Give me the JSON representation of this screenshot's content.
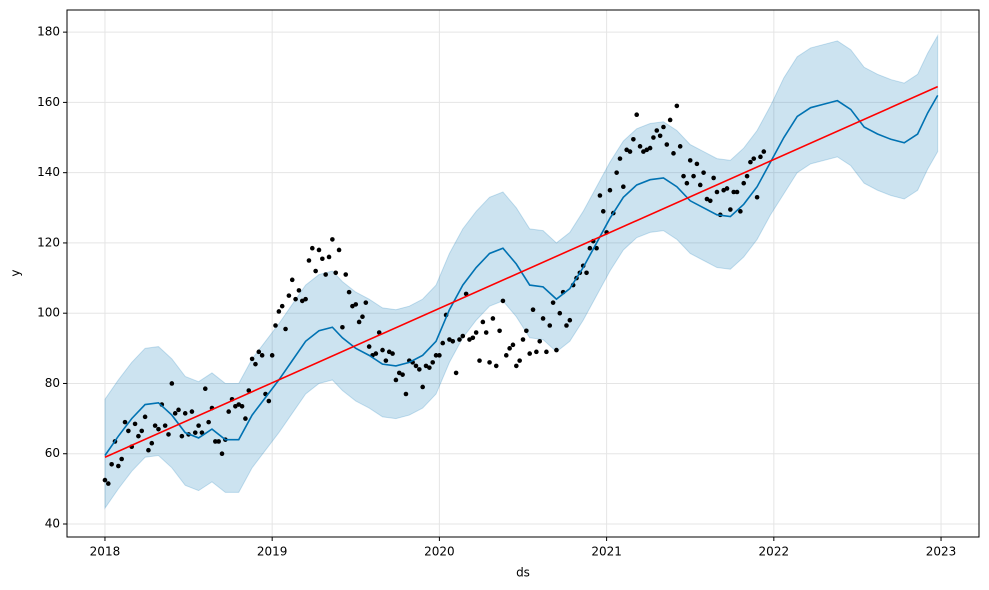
{
  "chart_data": {
    "type": "forecast",
    "x_label": "ds",
    "y_label": "y",
    "xlim": [
      2017.773,
      2023.227
    ],
    "xticks": [
      2018,
      2019,
      2020,
      2021,
      2022,
      2023
    ],
    "ylim": [
      36.3,
      186.3
    ],
    "yticks": [
      40,
      60,
      80,
      100,
      120,
      140,
      160,
      180
    ],
    "grid": true,
    "series": [
      {
        "kind": "band",
        "color": "#0072b2",
        "x": [
          2018.0,
          2018.08,
          2018.16,
          2018.24,
          2018.32,
          2018.4,
          2018.48,
          2018.56,
          2018.64,
          2018.72,
          2018.8,
          2018.88,
          2018.96,
          2019.04,
          2019.12,
          2019.2,
          2019.28,
          2019.36,
          2019.42,
          2019.5,
          2019.58,
          2019.66,
          2019.74,
          2019.82,
          2019.9,
          2019.98,
          2020.06,
          2020.14,
          2020.22,
          2020.3,
          2020.38,
          2020.46,
          2020.54,
          2020.62,
          2020.7,
          2020.78,
          2020.86,
          2020.94,
          2021.02,
          2021.1,
          2021.18,
          2021.26,
          2021.34,
          2021.42,
          2021.5,
          2021.58,
          2021.66,
          2021.74,
          2021.82,
          2021.9,
          2021.98,
          2022.06,
          2022.14,
          2022.22,
          2022.3,
          2022.38,
          2022.46,
          2022.54,
          2022.62,
          2022.7,
          2022.78,
          2022.86,
          2022.92,
          2022.98
        ],
        "lower": [
          44.5,
          50,
          55,
          59,
          59.5,
          56,
          51,
          49.5,
          52,
          49,
          49,
          56,
          61,
          66,
          71.5,
          77,
          80,
          81,
          78,
          75,
          73,
          70.5,
          70,
          71,
          73,
          77,
          86,
          93,
          98,
          102,
          103.5,
          99,
          93,
          92.5,
          89,
          92,
          98,
          105,
          112,
          118,
          121.5,
          123,
          123.5,
          121,
          117,
          115,
          113,
          112.5,
          116,
          121,
          128,
          134,
          140,
          142.5,
          143.5,
          144.5,
          142,
          137,
          135,
          133.5,
          132.5,
          135,
          141,
          146
        ],
        "upper": [
          75.5,
          81,
          86,
          90,
          90.5,
          87,
          82,
          80.5,
          83,
          80,
          80,
          87,
          92,
          97,
          102.5,
          108,
          111,
          112,
          109,
          106,
          104,
          101.5,
          101,
          102,
          104,
          108,
          117,
          124,
          129,
          133,
          134.5,
          130,
          124,
          123.5,
          120,
          123,
          129,
          136,
          143,
          149,
          152.5,
          154,
          154.5,
          152,
          148,
          146,
          144,
          143.5,
          147,
          152,
          159,
          167,
          173,
          175.5,
          176.5,
          177.5,
          175,
          170,
          168,
          166.5,
          165.5,
          168,
          174,
          179
        ]
      },
      {
        "kind": "points",
        "color": "#000000",
        "x": [
          2018.0,
          2018.02,
          2018.04,
          2018.06,
          2018.08,
          2018.1,
          2018.12,
          2018.14,
          2018.16,
          2018.18,
          2018.2,
          2018.22,
          2018.24,
          2018.26,
          2018.28,
          2018.3,
          2018.32,
          2018.34,
          2018.36,
          2018.38,
          2018.4,
          2018.42,
          2018.44,
          2018.46,
          2018.48,
          2018.5,
          2018.52,
          2018.54,
          2018.56,
          2018.58,
          2018.6,
          2018.62,
          2018.64,
          2018.66,
          2018.68,
          2018.7,
          2018.72,
          2018.74,
          2018.76,
          2018.78,
          2018.8,
          2018.82,
          2018.84,
          2018.86,
          2018.88,
          2018.9,
          2018.92,
          2018.94,
          2018.96,
          2018.98,
          2019.0,
          2019.02,
          2019.04,
          2019.06,
          2019.08,
          2019.1,
          2019.12,
          2019.14,
          2019.16,
          2019.18,
          2019.2,
          2019.22,
          2019.24,
          2019.26,
          2019.28,
          2019.3,
          2019.32,
          2019.34,
          2019.36,
          2019.38,
          2019.4,
          2019.42,
          2019.44,
          2019.46,
          2019.48,
          2019.5,
          2019.52,
          2019.54,
          2019.56,
          2019.58,
          2019.6,
          2019.62,
          2019.64,
          2019.66,
          2019.68,
          2019.7,
          2019.72,
          2019.74,
          2019.76,
          2019.78,
          2019.8,
          2019.82,
          2019.84,
          2019.86,
          2019.88,
          2019.9,
          2019.92,
          2019.94,
          2019.96,
          2019.98,
          2020.0,
          2020.02,
          2020.04,
          2020.06,
          2020.08,
          2020.1,
          2020.12,
          2020.14,
          2020.16,
          2020.18,
          2020.2,
          2020.22,
          2020.24,
          2020.26,
          2020.28,
          2020.3,
          2020.32,
          2020.34,
          2020.36,
          2020.38,
          2020.4,
          2020.42,
          2020.44,
          2020.46,
          2020.48,
          2020.5,
          2020.52,
          2020.54,
          2020.56,
          2020.58,
          2020.6,
          2020.62,
          2020.64,
          2020.66,
          2020.68,
          2020.7,
          2020.72,
          2020.74,
          2020.76,
          2020.78,
          2020.8,
          2020.82,
          2020.84,
          2020.86,
          2020.88,
          2020.9,
          2020.92,
          2020.94,
          2020.96,
          2020.98,
          2021.0,
          2021.02,
          2021.04,
          2021.06,
          2021.08,
          2021.1,
          2021.12,
          2021.14,
          2021.16,
          2021.18,
          2021.2,
          2021.22,
          2021.24,
          2021.26,
          2021.28,
          2021.3,
          2021.32,
          2021.34,
          2021.36,
          2021.38,
          2021.4,
          2021.42,
          2021.44,
          2021.46,
          2021.48,
          2021.5,
          2021.52,
          2021.54,
          2021.56,
          2021.58,
          2021.6,
          2021.62,
          2021.64,
          2021.66,
          2021.68,
          2021.7,
          2021.72,
          2021.74,
          2021.76,
          2021.78,
          2021.8,
          2021.82,
          2021.84,
          2021.86,
          2021.88,
          2021.9,
          2021.92,
          2021.94
        ],
        "values": [
          52.5,
          51.5,
          57,
          63.5,
          56.5,
          58.5,
          69,
          66.5,
          62,
          68.5,
          65,
          66.5,
          70.5,
          61,
          63,
          68,
          67,
          74,
          68,
          65.5,
          80,
          71.5,
          72.5,
          65,
          71.5,
          65.5,
          72,
          66,
          68,
          66,
          78.5,
          69,
          73,
          63.5,
          63.5,
          60,
          64,
          72,
          75.5,
          73.5,
          74,
          73.5,
          70,
          78,
          87,
          85.5,
          89,
          88,
          77,
          75,
          88,
          96.5,
          100.5,
          102,
          95.5,
          105,
          109.5,
          104,
          106.5,
          103.5,
          104,
          115,
          118.5,
          112,
          118,
          115.5,
          111,
          116,
          121,
          111.5,
          118,
          96,
          111,
          106,
          102,
          102.5,
          97.5,
          99,
          103,
          90.5,
          88,
          88.5,
          94.5,
          89.5,
          86.5,
          89,
          88.5,
          81,
          83,
          82.5,
          77,
          86.5,
          86,
          85,
          84,
          79,
          85,
          84.5,
          86,
          88,
          88,
          91.5,
          99.5,
          92.5,
          92,
          83,
          92.5,
          93.5,
          105.5,
          92.5,
          93,
          94.5,
          86.5,
          97.5,
          94.5,
          86,
          98.5,
          85,
          95,
          103.5,
          88,
          90,
          91,
          85,
          86.5,
          92.5,
          95,
          88.5,
          101,
          89,
          92,
          98.5,
          89,
          96.5,
          103,
          89.5,
          100,
          106,
          96.5,
          98,
          108,
          110,
          111.5,
          113.5,
          111.5,
          118.5,
          120.5,
          118.5,
          133.5,
          129,
          123,
          135,
          128.5,
          140,
          144,
          136,
          146.5,
          146,
          149.5,
          156.5,
          147.5,
          146,
          146.5,
          147,
          150,
          152,
          150.5,
          153,
          148,
          155,
          145.5,
          159,
          147.5,
          139,
          137,
          143.5,
          139,
          142.5,
          136.5,
          140,
          132.5,
          132,
          138.5,
          134.5,
          128,
          135,
          135.5,
          129.5,
          134.5,
          134.5,
          129,
          137,
          139,
          143,
          144,
          133,
          144.5,
          146
        ]
      },
      {
        "kind": "line",
        "color": "#0072b2",
        "x": [
          2018.0,
          2018.08,
          2018.16,
          2018.24,
          2018.32,
          2018.4,
          2018.48,
          2018.56,
          2018.64,
          2018.72,
          2018.8,
          2018.88,
          2018.96,
          2019.04,
          2019.12,
          2019.2,
          2019.28,
          2019.36,
          2019.42,
          2019.5,
          2019.58,
          2019.66,
          2019.74,
          2019.82,
          2019.9,
          2019.98,
          2020.06,
          2020.14,
          2020.22,
          2020.3,
          2020.38,
          2020.46,
          2020.54,
          2020.62,
          2020.7,
          2020.78,
          2020.86,
          2020.94,
          2021.02,
          2021.1,
          2021.18,
          2021.26,
          2021.34,
          2021.42,
          2021.5,
          2021.58,
          2021.66,
          2021.74,
          2021.82,
          2021.9,
          2021.98,
          2022.06,
          2022.14,
          2022.22,
          2022.3,
          2022.38,
          2022.46,
          2022.54,
          2022.62,
          2022.7,
          2022.78,
          2022.86,
          2022.92,
          2022.98
        ],
        "values": [
          59.5,
          65,
          70,
          74,
          74.5,
          71,
          66,
          64.5,
          67,
          64,
          64,
          71,
          76,
          81,
          86.5,
          92,
          95,
          96,
          93,
          90,
          88,
          85.5,
          85,
          86,
          88,
          92,
          101,
          108,
          113,
          117,
          118.5,
          114,
          108,
          107.5,
          104,
          107,
          113,
          120,
          127,
          133,
          136.5,
          138,
          138.5,
          136,
          132,
          130,
          128,
          127.5,
          131,
          136,
          143,
          150,
          156,
          158.5,
          159.5,
          160.5,
          158,
          153,
          151,
          149.5,
          148.5,
          151,
          157,
          162
        ]
      },
      {
        "kind": "line",
        "color": "#ff0000",
        "x": [
          2018.0,
          2022.98
        ],
        "values": [
          59,
          164.5
        ]
      }
    ]
  }
}
